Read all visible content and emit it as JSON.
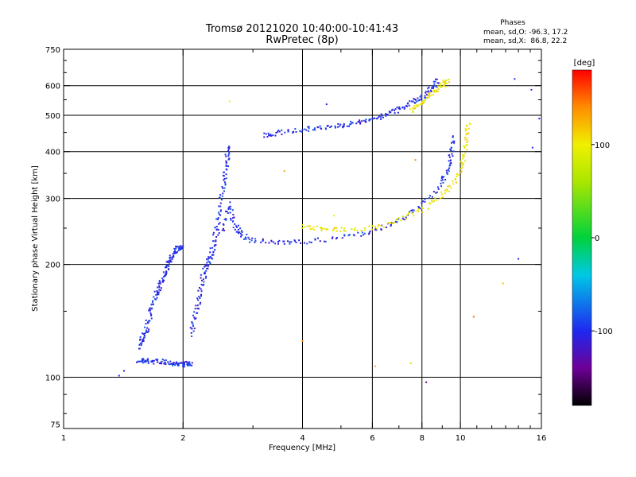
{
  "chart_data": {
    "type": "scatter",
    "title": "Tromsø 20121020 10:40:00-10:41:43",
    "subtitle": "RwPretec (8p)",
    "xlabel": "Frequency [MHz]",
    "ylabel": "Stationary phase Virtual Height [km]",
    "x_scale": "log",
    "y_scale": "log",
    "xlim": [
      1,
      16
    ],
    "ylim": [
      73,
      750
    ],
    "x_ticks": [
      1,
      2,
      4,
      6,
      8,
      10,
      16
    ],
    "y_ticks": [
      75,
      100,
      200,
      300,
      400,
      500,
      600,
      750
    ],
    "grid_x": [
      2,
      4,
      6,
      8,
      10
    ],
    "grid_y": [
      100,
      200,
      300,
      400,
      500,
      600
    ],
    "phases_box": {
      "heading": "Phases",
      "line_o": "mean, sd,O: -96.3, 17.2",
      "line_x": "mean, sd,X:  86.8, 22.2"
    },
    "colorbar": {
      "label": "[deg]",
      "min": -180,
      "max": 180,
      "ticks": [
        100,
        0,
        -100
      ],
      "colormap": "rainbow"
    },
    "colors": {
      "o_mode": "#1f2fe6",
      "x_mode": "#e8e81f",
      "x_mode_alt": "#a0d030",
      "outlier": "#e08020"
    },
    "traces": [
      {
        "mode": "O",
        "phase": -100,
        "points": [
          [
            1.55,
            111
          ],
          [
            1.6,
            110.5
          ],
          [
            1.7,
            110.3
          ],
          [
            1.8,
            110
          ],
          [
            1.9,
            109
          ],
          [
            2.0,
            108
          ],
          [
            2.05,
            108.5
          ],
          [
            2.1,
            109
          ]
        ]
      },
      {
        "mode": "O",
        "phase": -100,
        "points": [
          [
            1.55,
            120
          ],
          [
            1.58,
            128
          ],
          [
            1.62,
            135
          ],
          [
            1.66,
            150
          ],
          [
            1.7,
            165
          ],
          [
            1.74,
            172
          ],
          [
            1.78,
            185
          ],
          [
            1.82,
            195
          ],
          [
            1.85,
            205
          ],
          [
            1.9,
            215
          ],
          [
            1.95,
            222
          ],
          [
            2.0,
            222
          ]
        ]
      },
      {
        "mode": "O",
        "phase": -100,
        "points": [
          [
            2.1,
            130
          ],
          [
            2.15,
            145
          ],
          [
            2.2,
            165
          ],
          [
            2.25,
            185
          ],
          [
            2.3,
            200
          ],
          [
            2.35,
            210
          ],
          [
            2.4,
            230
          ],
          [
            2.45,
            260
          ],
          [
            2.5,
            300
          ],
          [
            2.55,
            340
          ],
          [
            2.58,
            380
          ],
          [
            2.6,
            420
          ]
        ]
      },
      {
        "mode": "O",
        "phase": -100,
        "points": [
          [
            2.5,
            240
          ],
          [
            2.6,
            290
          ],
          [
            2.7,
            255
          ],
          [
            2.8,
            240
          ],
          [
            3.0,
            232
          ],
          [
            3.5,
            228
          ],
          [
            4.0,
            230
          ],
          [
            5.0,
            235
          ],
          [
            6.0,
            245
          ],
          [
            7.0,
            262
          ],
          [
            8.0,
            290
          ],
          [
            9.0,
            330
          ],
          [
            9.3,
            360
          ],
          [
            9.5,
            400
          ],
          [
            9.6,
            440
          ]
        ]
      },
      {
        "mode": "X",
        "phase": 100,
        "points": [
          [
            4.0,
            252
          ],
          [
            4.5,
            250
          ],
          [
            5.0,
            248
          ],
          [
            6.0,
            250
          ],
          [
            7.0,
            262
          ],
          [
            8.0,
            280
          ],
          [
            9.0,
            305
          ],
          [
            9.8,
            340
          ],
          [
            10.2,
            380
          ],
          [
            10.4,
            430
          ],
          [
            10.45,
            480
          ]
        ]
      },
      {
        "mode": "O",
        "phase": -100,
        "points": [
          [
            3.2,
            440
          ],
          [
            3.5,
            450
          ],
          [
            4.0,
            458
          ],
          [
            4.5,
            465
          ],
          [
            5.0,
            470
          ],
          [
            5.5,
            478
          ],
          [
            6.0,
            488
          ],
          [
            6.5,
            500
          ],
          [
            7.0,
            520
          ],
          [
            7.5,
            540
          ],
          [
            8.0,
            560
          ],
          [
            8.5,
            590
          ],
          [
            8.8,
            620
          ]
        ]
      },
      {
        "mode": "X",
        "phase": 100,
        "points": [
          [
            7.5,
            515
          ],
          [
            8.0,
            540
          ],
          [
            8.5,
            570
          ],
          [
            9.0,
            600
          ],
          [
            9.3,
            620
          ]
        ]
      }
    ],
    "outliers": [
      {
        "x": 1.38,
        "y": 101,
        "phase": -100
      },
      {
        "x": 1.42,
        "y": 104,
        "phase": -100
      },
      {
        "x": 2.62,
        "y": 545,
        "phase": 100
      },
      {
        "x": 3.6,
        "y": 355,
        "phase": 130
      },
      {
        "x": 4.0,
        "y": 125,
        "phase": 140
      },
      {
        "x": 4.6,
        "y": 535,
        "phase": -100
      },
      {
        "x": 4.8,
        "y": 270,
        "phase": 100
      },
      {
        "x": 6.1,
        "y": 107,
        "phase": 120
      },
      {
        "x": 7.5,
        "y": 109,
        "phase": 110
      },
      {
        "x": 7.7,
        "y": 380,
        "phase": 140
      },
      {
        "x": 8.2,
        "y": 97,
        "phase": -140
      },
      {
        "x": 12.8,
        "y": 178,
        "phase": 120
      },
      {
        "x": 10.8,
        "y": 145,
        "phase": 150
      },
      {
        "x": 13.7,
        "y": 625,
        "phase": -100
      },
      {
        "x": 14.0,
        "y": 207,
        "phase": -100
      },
      {
        "x": 15.1,
        "y": 585,
        "phase": -100
      },
      {
        "x": 15.2,
        "y": 410,
        "phase": -100
      },
      {
        "x": 15.8,
        "y": 490,
        "phase": -100
      }
    ]
  }
}
